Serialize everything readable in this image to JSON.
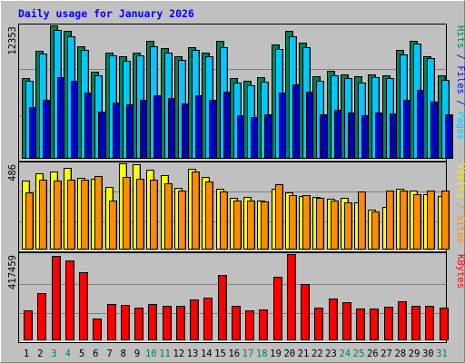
{
  "chart_data": {
    "type": "bar",
    "title": "Daily usage for January 2026",
    "days": [
      "1",
      "2",
      "3",
      "4",
      "5",
      "6",
      "7",
      "8",
      "9",
      "10",
      "11",
      "12",
      "13",
      "14",
      "15",
      "16",
      "17",
      "18",
      "19",
      "20",
      "21",
      "22",
      "23",
      "24",
      "25",
      "26",
      "27",
      "28",
      "29",
      "30",
      "31"
    ],
    "weekend_days": [
      "3",
      "4",
      "10",
      "11",
      "17",
      "18",
      "24",
      "25",
      "31"
    ],
    "panels": [
      {
        "name": "requests",
        "ymax": 12353,
        "ymax_label": "12353",
        "axis_labels": [
          {
            "text": "Hits",
            "color": "#00805C"
          },
          {
            "text": " / ",
            "color": "#0000FF"
          },
          {
            "text": "Files",
            "color": "#0000FF"
          },
          {
            "text": " / ",
            "color": "#0000FF"
          },
          {
            "text": "Pages",
            "color": "#00C8FF"
          }
        ],
        "series": [
          {
            "name": "Hits",
            "color": "#00805C",
            "values": [
              7450,
              10000,
              12353,
              11850,
              10450,
              8050,
              9850,
              9500,
              9850,
              10950,
              10250,
              9500,
              10300,
              9800,
              10900,
              7500,
              7250,
              7600,
              10600,
              11850,
              10750,
              7650,
              8150,
              7850,
              7650,
              7850,
              7700,
              10100,
              10900,
              9500,
              7750
            ]
          },
          {
            "name": "Files",
            "color": "#00C8FF",
            "values": [
              7200,
              9750,
              11900,
              11350,
              10050,
              7750,
              9550,
              9100,
              9600,
              10450,
              9800,
              9150,
              10050,
              9500,
              10350,
              7100,
              6800,
              7150,
              10150,
              11350,
              10300,
              7200,
              7750,
              7450,
              7100,
              7550,
              7500,
              9650,
              10650,
              9300,
              7300
            ]
          },
          {
            "name": "Pages",
            "color": "#0000C0",
            "values": [
              4800,
              5500,
              7600,
              7200,
              6100,
              4400,
              5200,
              5050,
              5500,
              5900,
              5600,
              5100,
              5900,
              5450,
              6250,
              4050,
              3850,
              4100,
              6100,
              6900,
              6200,
              4150,
              4500,
              4300,
              4000,
              4250,
              4200,
              5500,
              6350,
              5300,
              4100
            ]
          }
        ]
      },
      {
        "name": "visits",
        "ymax": 486,
        "ymax_label": "486",
        "axis_labels": [
          {
            "text": "Visits",
            "color": "#FFEE00"
          },
          {
            "text": " / ",
            "color": "#FF8C00"
          },
          {
            "text": "Sites",
            "color": "#FF8C00"
          }
        ],
        "series": [
          {
            "name": "Visits",
            "color": "#FFFF00",
            "values": [
              390,
              430,
              440,
              460,
              405,
              400,
              355,
              486,
              480,
              450,
              420,
              350,
              455,
              410,
              345,
              290,
              295,
              275,
              345,
              320,
              300,
              295,
              285,
              290,
              265,
              225,
              240,
              345,
              330,
              310,
              300
            ]
          },
          {
            "name": "Sites",
            "color": "#FF8C00",
            "values": [
              320,
              395,
              390,
              395,
              395,
              415,
              275,
              410,
              400,
              395,
              375,
              335,
              440,
              385,
              325,
              275,
              275,
              270,
              370,
              305,
              305,
              290,
              275,
              265,
              325,
              215,
              335,
              330,
              310,
              330,
              330
            ]
          }
        ]
      },
      {
        "name": "kbytes",
        "ymax": 417459,
        "ymax_label": "417459",
        "axis_labels": [
          {
            "text": "KBytes",
            "color": "#FF0000"
          }
        ],
        "series": [
          {
            "name": "KBytes",
            "color": "#FF0000",
            "values": [
              145000,
              230000,
              410000,
              385000,
              330000,
              106000,
              175000,
              170000,
              160000,
              175000,
              168000,
              165000,
              198000,
              206000,
              318000,
              165000,
              147000,
              149000,
              308000,
              417459,
              271000,
              160000,
              202000,
              183000,
              155000,
              154000,
              164000,
              190000,
              168000,
              166000,
              160000
            ]
          }
        ]
      }
    ]
  },
  "colors": {
    "background": "#C0C0C0",
    "plot_background": "#C0C0C0",
    "title": "#0000FF",
    "day_label_weekday": "#000000",
    "day_label_weekend": "#00805C"
  }
}
